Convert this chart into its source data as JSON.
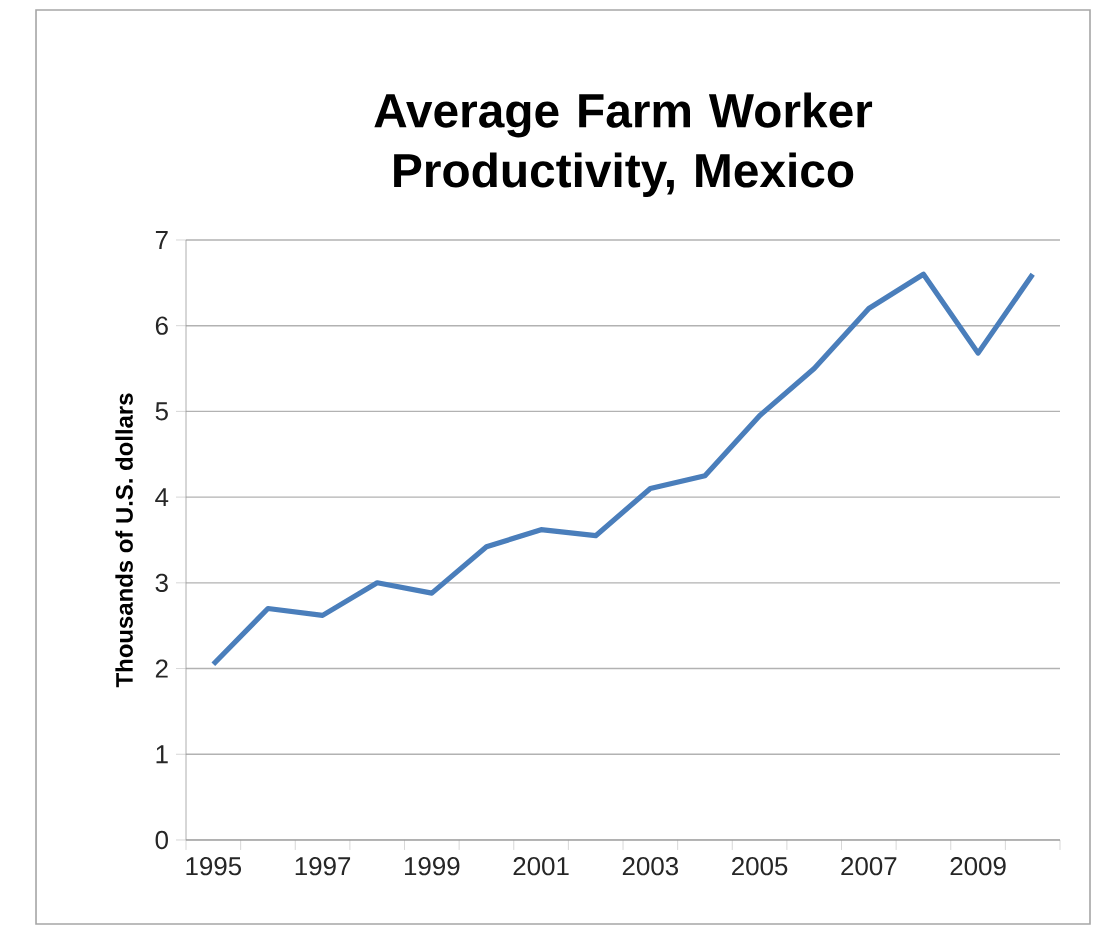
{
  "chart_data": {
    "type": "line",
    "title": "Average Farm Worker Productivity, Mexico",
    "ylabel": "Thousands of U.S. dollars",
    "categories": [
      "1995",
      null,
      "1997",
      null,
      "1999",
      null,
      "2001",
      null,
      "2003",
      null,
      "2005",
      null,
      "2007",
      null,
      "2009",
      null
    ],
    "series": [
      {
        "color": "#4a7ebb",
        "values": [
          2.05,
          2.7,
          2.62,
          3.0,
          2.88,
          3.42,
          3.62,
          3.55,
          4.1,
          4.25,
          4.95,
          5.5,
          6.2,
          6.6,
          5.68,
          6.6
        ]
      }
    ],
    "ylim": [
      0,
      7
    ],
    "yticks": [
      0,
      1,
      2,
      3,
      4,
      5,
      6,
      7
    ],
    "grid": "y",
    "legend": false,
    "marker": "none",
    "line_style": "solid"
  }
}
